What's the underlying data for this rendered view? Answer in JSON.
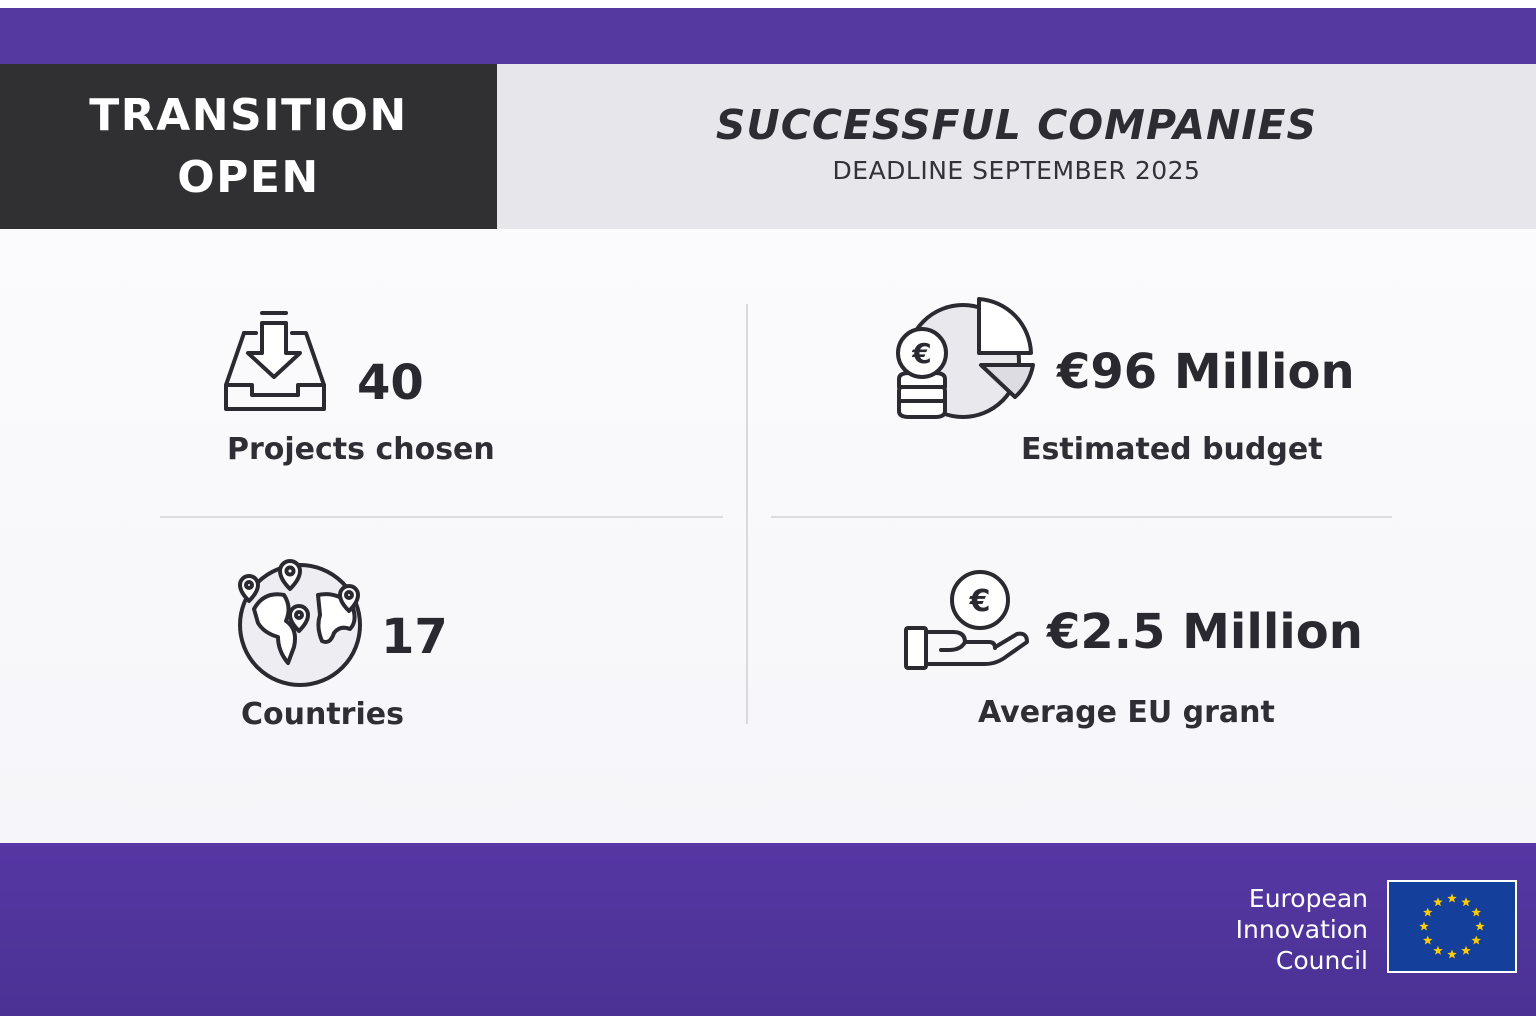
{
  "header": {
    "left_line1": "TRANSITION",
    "left_line2": "OPEN",
    "title": "SUCCESSFUL COMPANIES",
    "subtitle": "DEADLINE SEPTEMBER 2025"
  },
  "stats": {
    "projects": {
      "value": "40",
      "label": "Projects chosen",
      "icon": "inbox-download-icon"
    },
    "budget": {
      "value": "€96 Million",
      "label": "Estimated budget",
      "icon": "coins-pie-chart-icon"
    },
    "countries": {
      "value": "17",
      "label": "Countries",
      "icon": "globe-location-icon"
    },
    "grant": {
      "value": "€2.5 Million",
      "label": "Average EU grant",
      "icon": "hand-euro-coin-icon"
    }
  },
  "footer": {
    "org_line1": "European",
    "org_line2": "Innovation",
    "org_line3": "Council",
    "flag_icon": "eu-flag-icon"
  },
  "colors": {
    "band": "#5538a0",
    "header_dark": "#303033",
    "header_light": "#e7e6ea",
    "flag_blue": "#143f9a",
    "flag_star": "#ffcc00"
  }
}
